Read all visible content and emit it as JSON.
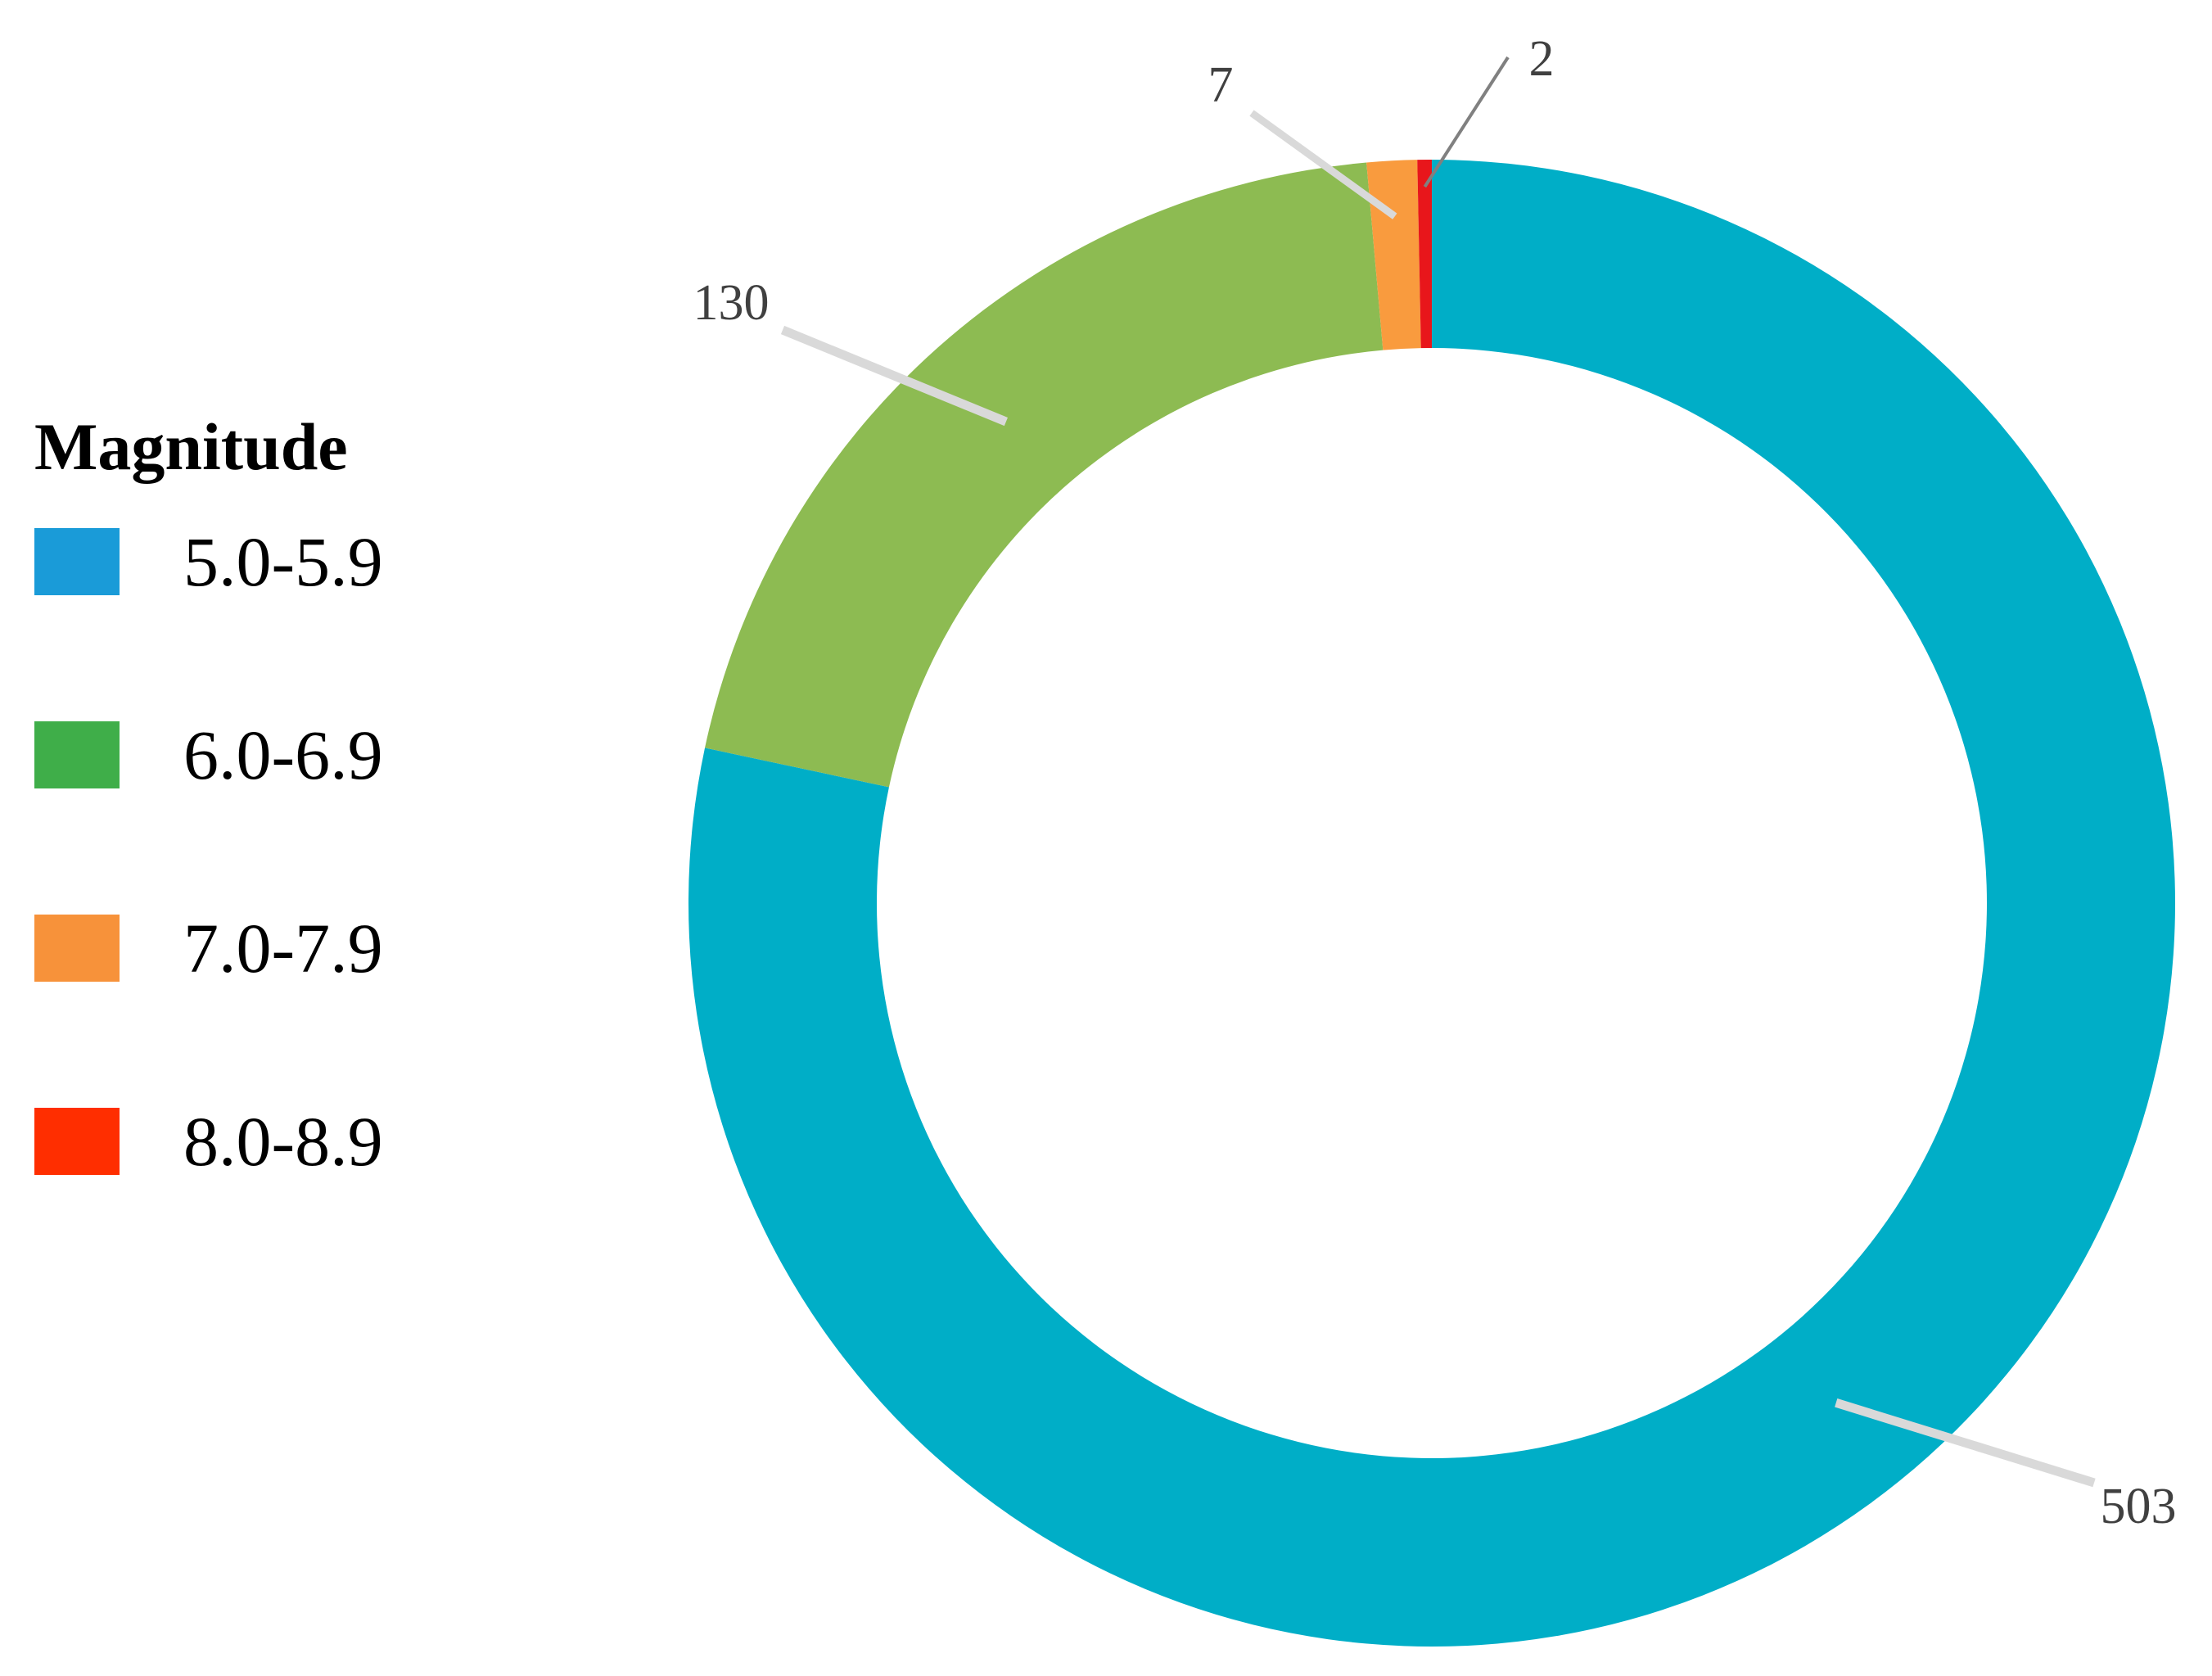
{
  "chart_data": {
    "type": "pie",
    "legend_title": "Magnitude",
    "legend_position": "left",
    "categories": [
      "5.0-5.9",
      "6.0-6.9",
      "7.0-7.9",
      "8.0-8.9"
    ],
    "values": [
      503,
      130,
      7,
      2
    ],
    "slice_colors": [
      "#00AEC7",
      "#8DBB52",
      "#F99B3E",
      "#E8161B"
    ],
    "legend_colors": [
      "#1A9BD8",
      "#3FAE49",
      "#F7923A",
      "#FF2E00"
    ],
    "data_labels": [
      "503",
      "130",
      "7",
      "2"
    ],
    "label_color": "#404040",
    "leader_color": "#D9D9D9"
  }
}
